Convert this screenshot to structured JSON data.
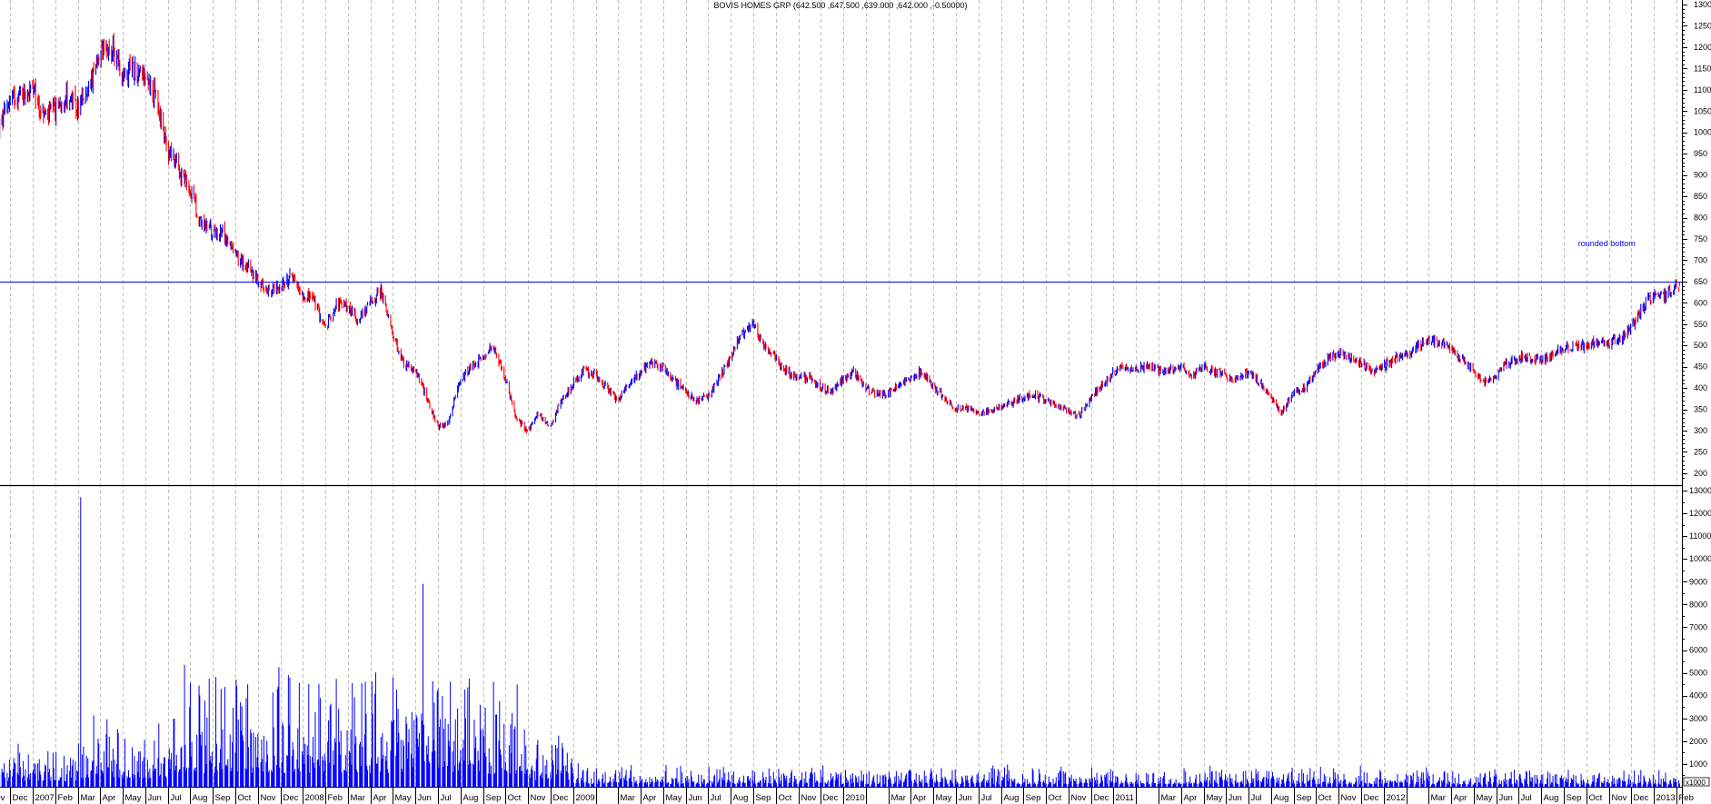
{
  "chart_data": {
    "type": "bar",
    "title": "BOVIS HOMES GRP (642.500 ,647.500 ,639.000 ,642.000 ,-0.50000)",
    "colors": {
      "up": "#0000ff",
      "down": "#ff0000",
      "hline": "#0000ff",
      "grid": "#c0c0c0",
      "annotation": "#0000ff"
    },
    "price_axis": {
      "ylim": [
        180,
        1310
      ],
      "ticks": [
        200,
        250,
        300,
        350,
        400,
        450,
        500,
        550,
        600,
        650,
        700,
        750,
        800,
        850,
        900,
        950,
        1000,
        1050,
        1100,
        1150,
        1200,
        1250,
        1300
      ],
      "position": "right"
    },
    "volume_axis": {
      "ylim": [
        0,
        13200
      ],
      "ticks": [
        1000,
        2000,
        3000,
        4000,
        5000,
        6000,
        7000,
        8000,
        9000,
        10000,
        11000,
        12000,
        13000
      ],
      "unit_label": "x1000",
      "position": "right"
    },
    "x_axis": {
      "start": "2006-10-22",
      "end": "2013-02-05",
      "month_labels": [
        {
          "month": "2006-11",
          "label": "Nov"
        },
        {
          "month": "2006-12",
          "label": "Dec"
        },
        {
          "month": "2007-01",
          "label": "2007"
        },
        {
          "month": "2007-02",
          "label": "Feb"
        },
        {
          "month": "2007-03",
          "label": "Mar"
        },
        {
          "month": "2007-04",
          "label": "Apr"
        },
        {
          "month": "2007-05",
          "label": "May"
        },
        {
          "month": "2007-06",
          "label": "Jun"
        },
        {
          "month": "2007-07",
          "label": "Jul"
        },
        {
          "month": "2007-08",
          "label": "Aug"
        },
        {
          "month": "2007-09",
          "label": "Sep"
        },
        {
          "month": "2007-10",
          "label": "Oct"
        },
        {
          "month": "2007-11",
          "label": "Nov"
        },
        {
          "month": "2007-12",
          "label": "Dec"
        },
        {
          "month": "2008-01",
          "label": "2008"
        },
        {
          "month": "2008-02",
          "label": "Feb"
        },
        {
          "month": "2008-03",
          "label": "Mar"
        },
        {
          "month": "2008-04",
          "label": "Apr"
        },
        {
          "month": "2008-05",
          "label": "May"
        },
        {
          "month": "2008-06",
          "label": "Jun"
        },
        {
          "month": "2008-07",
          "label": "Jul"
        },
        {
          "month": "2008-08",
          "label": "Aug"
        },
        {
          "month": "2008-09",
          "label": "Sep"
        },
        {
          "month": "2008-10",
          "label": "Oct"
        },
        {
          "month": "2008-11",
          "label": "Nov"
        },
        {
          "month": "2008-12",
          "label": "Dec"
        },
        {
          "month": "2009-01",
          "label": "2009"
        },
        {
          "month": "2009-02",
          "label": ""
        },
        {
          "month": "2009-03",
          "label": "Mar"
        },
        {
          "month": "2009-04",
          "label": "Apr"
        },
        {
          "month": "2009-05",
          "label": "May"
        },
        {
          "month": "2009-06",
          "label": "Jun"
        },
        {
          "month": "2009-07",
          "label": "Jul"
        },
        {
          "month": "2009-08",
          "label": "Aug"
        },
        {
          "month": "2009-09",
          "label": "Sep"
        },
        {
          "month": "2009-10",
          "label": "Oct"
        },
        {
          "month": "2009-11",
          "label": "Nov"
        },
        {
          "month": "2009-12",
          "label": "Dec"
        },
        {
          "month": "2010-01",
          "label": "2010"
        },
        {
          "month": "2010-02",
          "label": ""
        },
        {
          "month": "2010-03",
          "label": "Mar"
        },
        {
          "month": "2010-04",
          "label": "Apr"
        },
        {
          "month": "2010-05",
          "label": "May"
        },
        {
          "month": "2010-06",
          "label": "Jun"
        },
        {
          "month": "2010-07",
          "label": "Jul"
        },
        {
          "month": "2010-08",
          "label": "Aug"
        },
        {
          "month": "2010-09",
          "label": "Sep"
        },
        {
          "month": "2010-10",
          "label": "Oct"
        },
        {
          "month": "2010-11",
          "label": "Nov"
        },
        {
          "month": "2010-12",
          "label": "Dec"
        },
        {
          "month": "2011-01",
          "label": "2011"
        },
        {
          "month": "2011-02",
          "label": ""
        },
        {
          "month": "2011-03",
          "label": "Mar"
        },
        {
          "month": "2011-04",
          "label": "Apr"
        },
        {
          "month": "2011-05",
          "label": "May"
        },
        {
          "month": "2011-06",
          "label": "Jun"
        },
        {
          "month": "2011-07",
          "label": "Jul"
        },
        {
          "month": "2011-08",
          "label": "Aug"
        },
        {
          "month": "2011-09",
          "label": "Sep"
        },
        {
          "month": "2011-10",
          "label": "Oct"
        },
        {
          "month": "2011-11",
          "label": "Nov"
        },
        {
          "month": "2011-12",
          "label": "Dec"
        },
        {
          "month": "2012-01",
          "label": "2012"
        },
        {
          "month": "2012-02",
          "label": ""
        },
        {
          "month": "2012-03",
          "label": "Mar"
        },
        {
          "month": "2012-04",
          "label": "Apr"
        },
        {
          "month": "2012-05",
          "label": "May"
        },
        {
          "month": "2012-06",
          "label": "Jun"
        },
        {
          "month": "2012-07",
          "label": "Jul"
        },
        {
          "month": "2012-08",
          "label": "Aug"
        },
        {
          "month": "2012-09",
          "label": "Sep"
        },
        {
          "month": "2012-10",
          "label": "Oct"
        },
        {
          "month": "2012-11",
          "label": "Nov"
        },
        {
          "month": "2012-12",
          "label": "Dec"
        },
        {
          "month": "2013-01",
          "label": "2013"
        },
        {
          "month": "2013-02",
          "label": "Feb"
        }
      ]
    },
    "horizontal_line": {
      "value": 650
    },
    "annotation": {
      "text": "rounded bottom",
      "date": "2012-09-20",
      "value": 733
    },
    "price_series": {
      "dates": [
        "2006-11-15",
        "2006-12-01",
        "2006-12-15",
        "2007-01-01",
        "2007-01-15",
        "2007-02-01",
        "2007-02-15",
        "2007-03-01",
        "2007-03-15",
        "2007-04-01",
        "2007-04-15",
        "2007-05-01",
        "2007-05-15",
        "2007-06-01",
        "2007-06-15",
        "2007-07-01",
        "2007-07-15",
        "2007-08-01",
        "2007-08-15",
        "2007-09-01",
        "2007-09-15",
        "2007-10-01",
        "2007-10-15",
        "2007-11-01",
        "2007-11-15",
        "2007-12-01",
        "2007-12-15",
        "2008-01-01",
        "2008-01-15",
        "2008-02-01",
        "2008-02-15",
        "2008-03-01",
        "2008-03-15",
        "2008-04-01",
        "2008-04-15",
        "2008-05-01",
        "2008-05-15",
        "2008-06-01",
        "2008-06-15",
        "2008-07-01",
        "2008-07-15",
        "2008-08-01",
        "2008-08-15",
        "2008-09-01",
        "2008-09-15",
        "2008-10-01",
        "2008-10-15",
        "2008-11-01",
        "2008-11-15",
        "2008-12-01",
        "2008-12-15",
        "2009-01-01",
        "2009-01-15",
        "2009-02-01",
        "2009-02-15",
        "2009-03-01",
        "2009-03-15",
        "2009-04-01",
        "2009-04-15",
        "2009-05-01",
        "2009-05-15",
        "2009-06-01",
        "2009-06-15",
        "2009-07-01",
        "2009-07-15",
        "2009-08-01",
        "2009-08-15",
        "2009-09-01",
        "2009-09-15",
        "2009-10-01",
        "2009-10-15",
        "2009-11-01",
        "2009-11-15",
        "2009-12-01",
        "2009-12-15",
        "2010-01-01",
        "2010-01-15",
        "2010-02-01",
        "2010-02-15",
        "2010-03-01",
        "2010-03-15",
        "2010-04-01",
        "2010-04-15",
        "2010-05-01",
        "2010-05-15",
        "2010-06-01",
        "2010-06-15",
        "2010-07-01",
        "2010-07-15",
        "2010-08-01",
        "2010-08-15",
        "2010-09-01",
        "2010-09-15",
        "2010-10-01",
        "2010-10-15",
        "2010-11-01",
        "2010-11-15",
        "2010-12-01",
        "2010-12-15",
        "2011-01-01",
        "2011-01-15",
        "2011-02-01",
        "2011-02-15",
        "2011-03-01",
        "2011-03-15",
        "2011-04-01",
        "2011-04-15",
        "2011-05-01",
        "2011-05-15",
        "2011-06-01",
        "2011-06-15",
        "2011-07-01",
        "2011-07-15",
        "2011-08-01",
        "2011-08-15",
        "2011-09-01",
        "2011-09-15",
        "2011-10-01",
        "2011-10-15",
        "2011-11-01",
        "2011-11-15",
        "2011-12-01",
        "2011-12-15",
        "2012-01-01",
        "2012-01-15",
        "2012-02-01",
        "2012-02-15",
        "2012-03-01",
        "2012-03-15",
        "2012-04-01",
        "2012-04-15",
        "2012-05-01",
        "2012-05-15",
        "2012-06-01",
        "2012-06-15",
        "2012-07-01",
        "2012-07-15",
        "2012-08-01",
        "2012-08-15",
        "2012-09-01",
        "2012-09-15",
        "2012-10-01",
        "2012-10-15",
        "2012-11-01",
        "2012-11-15",
        "2012-12-01",
        "2012-12-15",
        "2013-01-01",
        "2013-01-15",
        "2013-02-01"
      ],
      "close": [
        1000,
        1080,
        1090,
        1100,
        1040,
        1050,
        1090,
        1050,
        1100,
        1170,
        1200,
        1140,
        1150,
        1140,
        1080,
        960,
        920,
        860,
        790,
        770,
        760,
        710,
        690,
        650,
        630,
        640,
        660,
        620,
        610,
        540,
        600,
        590,
        560,
        600,
        630,
        520,
        460,
        440,
        380,
        310,
        320,
        420,
        450,
        470,
        500,
        420,
        330,
        300,
        340,
        310,
        370,
        410,
        440,
        430,
        400,
        370,
        410,
        440,
        460,
        450,
        420,
        390,
        370,
        380,
        420,
        470,
        530,
        550,
        500,
        470,
        440,
        420,
        430,
        400,
        390,
        420,
        440,
        400,
        385,
        390,
        405,
        420,
        440,
        400,
        380,
        350,
        355,
        340,
        345,
        355,
        365,
        380,
        385,
        370,
        360,
        345,
        335,
        375,
        405,
        435,
        450,
        445,
        450,
        440,
        440,
        450,
        425,
        450,
        440,
        430,
        420,
        440,
        415,
        380,
        340,
        390,
        400,
        440,
        465,
        480,
        470,
        460,
        440,
        450,
        470,
        480,
        500,
        510,
        510,
        490,
        470,
        440,
        410,
        430,
        460,
        475,
        470,
        465,
        480,
        490,
        500,
        500,
        505,
        505,
        515,
        545,
        580,
        625,
        615,
        642
      ],
      "last_bar": {
        "open": 642.5,
        "high": 647.5,
        "low": 639.0,
        "close": 642.0,
        "change": -0.5
      }
    },
    "volume_series": {
      "monthly_base": [
        {
          "from": "2006-10",
          "level": 800
        },
        {
          "from": "2007-03",
          "level": 1200
        },
        {
          "from": "2007-07",
          "level": 2000
        },
        {
          "from": "2008-07",
          "level": 1800
        },
        {
          "from": "2008-11",
          "level": 900
        },
        {
          "from": "2009-01",
          "level": 400
        },
        {
          "from": "2010-01",
          "level": 350
        },
        {
          "from": "2012-01",
          "level": 300
        }
      ],
      "spikes": [
        {
          "date": "2007-03-05",
          "value": 12700
        },
        {
          "date": "2008-06-11",
          "value": 8900
        },
        {
          "date": "2008-05-01",
          "value": 4800
        },
        {
          "date": "2007-10-02",
          "value": 4700
        },
        {
          "date": "2008-09-15",
          "value": 4600
        },
        {
          "date": "2007-12-12",
          "value": 4900
        }
      ]
    }
  }
}
